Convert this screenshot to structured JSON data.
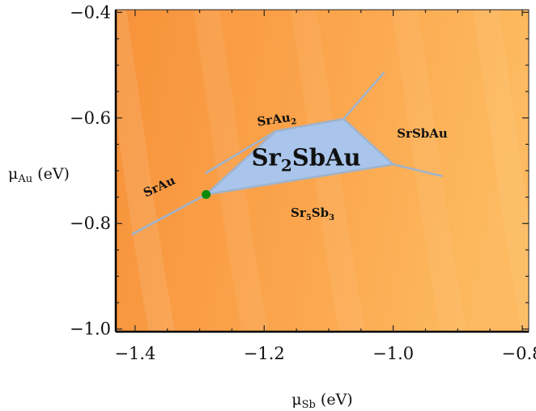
{
  "chart_data": {
    "type": "phase-diagram",
    "title": "",
    "xlabel": {
      "symbol": "μ",
      "sub": "Sb",
      "unit": " (eV)"
    },
    "ylabel": {
      "symbol": "μ",
      "sub": "Au",
      "unit": " (eV)"
    },
    "xlim": [
      -1.43,
      -0.79
    ],
    "ylim": [
      -1.005,
      -0.395
    ],
    "x_ticks": [
      {
        "value": -1.4,
        "label": "−1.4"
      },
      {
        "value": -1.2,
        "label": "−1.2"
      },
      {
        "value": -1.0,
        "label": "−1.0"
      },
      {
        "value": -0.8,
        "label": "−0.8"
      }
    ],
    "y_ticks": [
      {
        "value": -0.4,
        "label": "−0.4"
      },
      {
        "value": -0.6,
        "label": "−0.6"
      },
      {
        "value": -0.8,
        "label": "−0.8"
      },
      {
        "value": -1.0,
        "label": "−1.0"
      }
    ],
    "stable_region": {
      "name": "Sr2SbAu",
      "color": "#a9c5eb",
      "vertices": [
        [
          -1.29,
          -0.745
        ],
        [
          -1.182,
          -0.625
        ],
        [
          -1.077,
          -0.602
        ],
        [
          -1.0,
          -0.688
        ],
        [
          -1.29,
          -0.745
        ]
      ]
    },
    "boundary_lines": [
      {
        "points": [
          [
            -1.404,
            -0.82
          ],
          [
            -1.29,
            -0.745
          ]
        ]
      },
      {
        "points": [
          [
            -1.29,
            -0.745
          ],
          [
            -1.182,
            -0.625
          ]
        ]
      },
      {
        "points": [
          [
            -1.182,
            -0.625
          ],
          [
            -1.077,
            -0.602
          ]
        ]
      },
      {
        "points": [
          [
            -1.077,
            -0.602
          ],
          [
            -1.0,
            -0.688
          ]
        ]
      },
      {
        "points": [
          [
            -1.0,
            -0.688
          ],
          [
            -1.29,
            -0.745
          ]
        ]
      },
      {
        "points": [
          [
            -1.29,
            -0.704
          ],
          [
            -1.182,
            -0.625
          ]
        ]
      },
      {
        "points": [
          [
            -1.077,
            -0.602
          ],
          [
            -1.015,
            -0.515
          ]
        ]
      },
      {
        "points": [
          [
            -1.0,
            -0.688
          ],
          [
            -0.925,
            -0.71
          ]
        ]
      }
    ],
    "point": {
      "x": -1.29,
      "y": -0.745,
      "color": "#0a8a0a"
    },
    "region_labels": [
      {
        "parts": [
          {
            "t": "SrAu"
          }
        ],
        "x": -1.36,
        "y": -0.737,
        "size": 15,
        "rotate": -25
      },
      {
        "parts": [
          {
            "t": "SrAu"
          },
          {
            "t": "2",
            "sub": true
          }
        ],
        "x": -1.18,
        "y": -0.61,
        "size": 15,
        "rotate": -8
      },
      {
        "parts": [
          {
            "t": "Sr"
          },
          {
            "t": "2",
            "sub": true
          },
          {
            "t": "SbAu"
          }
        ],
        "x": -1.135,
        "y": -0.69,
        "size": 29,
        "rotate": 0
      },
      {
        "parts": [
          {
            "t": "SrSbAu"
          }
        ],
        "x": -0.955,
        "y": -0.637,
        "size": 15,
        "rotate": 0
      },
      {
        "parts": [
          {
            "t": "Sr"
          },
          {
            "t": "5",
            "sub": true
          },
          {
            "t": "Sb"
          },
          {
            "t": "3",
            "sub": true
          }
        ],
        "x": -1.125,
        "y": -0.787,
        "size": 15,
        "rotate": 0
      }
    ],
    "background_gradient": {
      "left_color": "#f7923a",
      "right_color": "#fdba60"
    },
    "grid": false,
    "frame": true
  }
}
